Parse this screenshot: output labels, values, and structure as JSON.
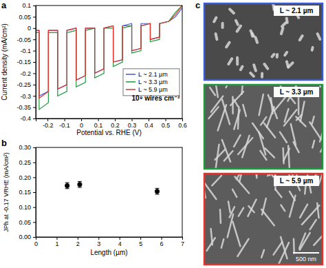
{
  "chart_data": [
    {
      "type": "line",
      "title": "a",
      "x_label": "Potential vs. RHE (V)",
      "y_label": "Current density (mA/cm²)",
      "annotation": "10⁹ wires cm⁻²",
      "x": [
        -0.27,
        -0.25,
        -0.25,
        -0.195,
        -0.195,
        -0.14,
        -0.14,
        -0.085,
        -0.085,
        -0.03,
        -0.03,
        0.025,
        0.025,
        0.08,
        0.08,
        0.135,
        0.135,
        0.19,
        0.19,
        0.245,
        0.245,
        0.3,
        0.3,
        0.355,
        0.355,
        0.41,
        0.41,
        0.465,
        0.465,
        0.52,
        0.56,
        0.6
      ],
      "series": [
        {
          "name": "L ~ 2.1 µm",
          "color": "#3b5bd6",
          "values": [
            -0.01,
            -0.01,
            -0.3,
            -0.28,
            -0.01,
            -0.01,
            -0.27,
            -0.25,
            -0.01,
            0.0,
            -0.23,
            -0.21,
            0.0,
            0.0,
            -0.2,
            -0.18,
            0.0,
            0.01,
            -0.15,
            -0.14,
            0.01,
            0.02,
            -0.1,
            -0.09,
            0.02,
            0.02,
            -0.05,
            -0.04,
            0.02,
            0.03,
            0.05,
            0.09
          ]
        },
        {
          "name": "L ~ 3.3 µm",
          "color": "#1f9a3a",
          "values": [
            -0.02,
            -0.02,
            -0.36,
            -0.33,
            -0.02,
            -0.02,
            -0.3,
            -0.28,
            -0.02,
            -0.01,
            -0.26,
            -0.24,
            -0.01,
            0.0,
            -0.22,
            -0.2,
            0.0,
            0.0,
            -0.17,
            -0.15,
            0.0,
            0.01,
            -0.11,
            -0.1,
            0.01,
            0.02,
            -0.06,
            -0.05,
            0.02,
            0.03,
            0.07,
            0.1
          ]
        },
        {
          "name": "L ~ 5.9 µm",
          "color": "#e8312a",
          "values": [
            -0.01,
            -0.01,
            -0.31,
            -0.28,
            -0.01,
            -0.01,
            -0.27,
            -0.25,
            -0.01,
            0.0,
            -0.23,
            -0.21,
            0.0,
            0.0,
            -0.2,
            -0.18,
            0.0,
            0.01,
            -0.15,
            -0.14,
            0.01,
            0.01,
            -0.1,
            -0.09,
            0.01,
            0.02,
            -0.05,
            -0.04,
            0.02,
            0.03,
            0.06,
            0.1
          ]
        }
      ],
      "xlim": [
        -0.27,
        0.6
      ],
      "xticks": [
        -0.2,
        -0.1,
        0,
        0.1,
        0.2,
        0.3,
        0.4,
        0.5,
        0.6
      ],
      "ylim": [
        -0.4,
        0.1
      ],
      "yticks": [
        -0.4,
        -0.35,
        -0.3,
        -0.25,
        -0.2,
        -0.15,
        -0.1,
        -0.05,
        0,
        0.05,
        0.1
      ],
      "legend": "right"
    },
    {
      "type": "scatter",
      "title": "b",
      "x_label": "Length (µm)",
      "y_label": "JPh at -0.17 VRHE (mA/cm²)",
      "x": [
        1.5,
        2.1,
        5.8
      ],
      "values": [
        0.172,
        0.176,
        0.153
      ],
      "errors": [
        0.01,
        0.01,
        0.01
      ],
      "color": "#000000",
      "marker": "circle",
      "xlim": [
        0,
        7
      ],
      "xticks": [
        0,
        1,
        2,
        3,
        4,
        5,
        6,
        7
      ],
      "ylim": [
        0,
        0.3
      ],
      "yticks": [
        {
          "value": 0,
          "label": "0.00"
        },
        {
          "value": 0.05,
          "label": "0.05"
        },
        {
          "value": 0.1,
          "label": "0.10"
        },
        {
          "value": 0.15,
          "label": "0.15"
        },
        {
          "value": 0.2,
          "label": "0.20"
        },
        {
          "value": 0.25,
          "label": "0.25"
        },
        {
          "value": 0.3,
          "label": "0.30"
        }
      ]
    }
  ],
  "images": {
    "title": "c",
    "scale_bar": "500 nm",
    "items": [
      {
        "label": "L ~ 2.1 µm",
        "color": "#3b5bd6"
      },
      {
        "label": "L ~ 3.3 µm",
        "color": "#1f9a3a"
      },
      {
        "label": "L ~ 5.9 µm",
        "color": "#e8312a"
      }
    ]
  }
}
